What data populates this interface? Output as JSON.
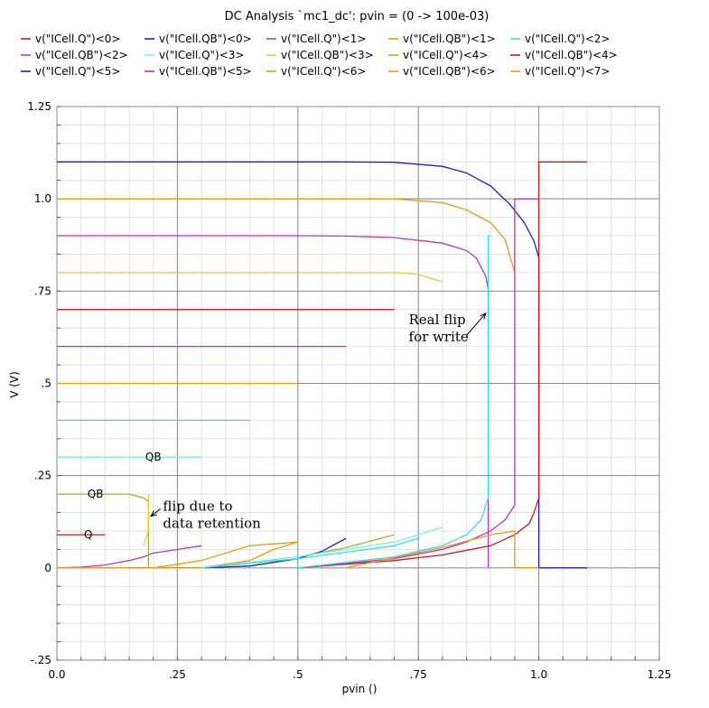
{
  "chart_data": {
    "type": "line",
    "title": "DC Analysis `mc1_dc': pvin = (0 -> 100e-03)",
    "xlabel": "pvin ()",
    "ylabel": "V (V)",
    "xlim": [
      0,
      1.25
    ],
    "ylim": [
      -0.25,
      1.25
    ],
    "x_ticks": [
      "0.0",
      ".25",
      ".5",
      ".75",
      "1.0",
      "1.25"
    ],
    "y_ticks": [
      "-.25",
      "0",
      ".25",
      ".5",
      ".75",
      "1.0",
      "1.25"
    ],
    "grid": true,
    "legend_position": "top",
    "series": [
      {
        "name": "v(\"ICell.Q\")<0>",
        "color": "#d01818",
        "points": [
          [
            0,
            0.09
          ],
          [
            0.1,
            0.09
          ]
        ]
      },
      {
        "name": "v(\"ICell.QB\")<0>",
        "color": "#1c1ccc",
        "points": [
          [
            0,
            1.1
          ],
          [
            0.6,
            1.1
          ],
          [
            0.7,
            1.099
          ],
          [
            0.8,
            1.088
          ],
          [
            0.85,
            1.07
          ],
          [
            0.9,
            1.035
          ],
          [
            0.94,
            0.985
          ],
          [
            0.97,
            0.935
          ],
          [
            0.99,
            0.885
          ],
          [
            1.0,
            0.84
          ],
          [
            1.0,
            0
          ],
          [
            1.1,
            0
          ]
        ]
      },
      {
        "name": "v(\"ICell.Q\")<1>",
        "color": "#c030c8",
        "points": [
          [
            0,
            0
          ],
          [
            0.05,
            0.002
          ],
          [
            0.1,
            0.008
          ],
          [
            0.15,
            0.02
          ],
          [
            0.18,
            0.03
          ],
          [
            0.2,
            0.04
          ],
          [
            0.25,
            0.05
          ],
          [
            0.3,
            0.06
          ]
        ]
      },
      {
        "name": "v(\"ICell.QB\")<1>",
        "color": "#e89a10",
        "points": [
          [
            0,
            1.0
          ],
          [
            0.6,
            1.0
          ],
          [
            0.7,
            1.0
          ],
          [
            0.8,
            0.99
          ],
          [
            0.85,
            0.97
          ],
          [
            0.9,
            0.935
          ],
          [
            0.93,
            0.89
          ],
          [
            0.95,
            0.8
          ]
        ]
      },
      {
        "name": "v(\"ICell.Q\")<2>",
        "color": "#30e0e0",
        "points": [
          [
            0,
            0.4
          ],
          [
            0.4,
            0.4
          ]
        ]
      },
      {
        "name": "v(\"ICell.QB\")<2>",
        "color": "#c030c8",
        "points": [
          [
            0,
            0.9
          ],
          [
            0.5,
            0.9
          ],
          [
            0.6,
            0.899
          ],
          [
            0.7,
            0.895
          ],
          [
            0.8,
            0.88
          ],
          [
            0.85,
            0.86
          ],
          [
            0.87,
            0.84
          ],
          [
            0.89,
            0.79
          ],
          [
            0.895,
            0.755
          ],
          [
            0.895,
            0
          ]
        ]
      },
      {
        "name": "v(\"ICell.Q\")<3>",
        "color": "#80eedd",
        "points": [
          [
            0,
            0.3
          ],
          [
            0.3,
            0.3
          ]
        ]
      },
      {
        "name": "v(\"ICell.QB\")<3>",
        "color": "#e8cc20",
        "points": [
          [
            0,
            0.8
          ],
          [
            0.7,
            0.8
          ],
          [
            0.75,
            0.795
          ],
          [
            0.8,
            0.775
          ]
        ]
      },
      {
        "name": "v(\"ICell.Q\")<4>",
        "color": "#90b830",
        "points": [
          [
            0,
            0.2
          ],
          [
            0.15,
            0.2
          ],
          [
            0.18,
            0.19
          ],
          [
            0.19,
            0.18
          ],
          [
            0.19,
            0
          ]
        ]
      },
      {
        "name": "v(\"ICell.QB\")<4>",
        "color": "#d01818",
        "points": [
          [
            0,
            0.7
          ],
          [
            0.7,
            0.7
          ]
        ]
      },
      {
        "name": "v(\"ICell.Q\")<5>",
        "color": "#1c1ccc",
        "points": [
          [
            0.15,
            0
          ],
          [
            0.3,
            0
          ],
          [
            0.4,
            0.005
          ],
          [
            0.5,
            0.025
          ],
          [
            0.55,
            0.045
          ],
          [
            0.6,
            0.08
          ]
        ]
      },
      {
        "name": "v(\"ICell.QB\")<5>",
        "color": "#c030c8",
        "points": [
          [
            0,
            0.6
          ],
          [
            0.6,
            0.6
          ]
        ]
      },
      {
        "name": "v(\"ICell.Q\")<6>",
        "color": "#e89a10",
        "points": [
          [
            0.2,
            0
          ],
          [
            0.3,
            0.02
          ],
          [
            0.4,
            0.06
          ],
          [
            0.5,
            0.07
          ]
        ]
      },
      {
        "name": "v(\"ICell.QB\")<6>",
        "color": "#e89a10",
        "points": [
          [
            0,
            0
          ],
          [
            0.3,
            0
          ],
          [
            0.4,
            0.02
          ],
          [
            0.45,
            0.05
          ],
          [
            0.5,
            0.07
          ]
        ]
      },
      {
        "name": "v(\"ICell.Q\")<7>",
        "color": "#e89a10",
        "points": [
          [
            0,
            0.5
          ],
          [
            0.5,
            0.5
          ]
        ]
      },
      {
        "name": "",
        "color": "#d01818",
        "points": [
          [
            0.5,
            0
          ],
          [
            0.7,
            0.02
          ],
          [
            0.8,
            0.035
          ],
          [
            0.9,
            0.06
          ],
          [
            0.95,
            0.09
          ],
          [
            0.98,
            0.12
          ],
          [
            0.99,
            0.15
          ],
          [
            1.0,
            0.19
          ],
          [
            1.0,
            1.1
          ],
          [
            1.1,
            1.1
          ]
        ]
      },
      {
        "name": "",
        "color": "#c030c8",
        "points": [
          [
            0.5,
            0
          ],
          [
            0.7,
            0.025
          ],
          [
            0.8,
            0.05
          ],
          [
            0.85,
            0.07
          ],
          [
            0.9,
            0.1
          ],
          [
            0.93,
            0.13
          ],
          [
            0.95,
            0.17
          ],
          [
            0.95,
            1.0
          ],
          [
            1.0,
            1.0
          ]
        ]
      },
      {
        "name": "",
        "color": "#30e0e0",
        "points": [
          [
            0.5,
            0
          ],
          [
            0.7,
            0.03
          ],
          [
            0.8,
            0.06
          ],
          [
            0.85,
            0.09
          ],
          [
            0.88,
            0.13
          ],
          [
            0.895,
            0.19
          ],
          [
            0.895,
            0.9
          ],
          [
            0.9,
            0.9
          ]
        ]
      },
      {
        "name": "",
        "color": "#e89a10",
        "points": [
          [
            0.95,
            0
          ],
          [
            1.0,
            0
          ]
        ]
      },
      {
        "name": "",
        "color": "#e89a10",
        "points": [
          [
            0.6,
            0
          ],
          [
            0.8,
            0.055
          ],
          [
            0.9,
            0.09
          ],
          [
            0.95,
            0.1
          ],
          [
            0.95,
            0
          ],
          [
            0.975,
            0
          ]
        ]
      },
      {
        "name": "",
        "color": "#e8cc20",
        "points": [
          [
            0.18,
            0.06
          ],
          [
            0.19,
            0.1
          ],
          [
            0.19,
            0.2
          ]
        ]
      },
      {
        "name": "",
        "color": "#90b830",
        "points": [
          [
            0.3,
            0
          ],
          [
            0.5,
            0.03
          ],
          [
            0.6,
            0.055
          ],
          [
            0.7,
            0.09
          ]
        ]
      },
      {
        "name": "",
        "color": "#80eedd",
        "points": [
          [
            0.3,
            0
          ],
          [
            0.5,
            0.03
          ],
          [
            0.7,
            0.07
          ],
          [
            0.8,
            0.11
          ]
        ]
      },
      {
        "name": "",
        "color": "#30e0e0",
        "points": [
          [
            0.3,
            0
          ],
          [
            0.5,
            0.025
          ],
          [
            0.7,
            0.06
          ],
          [
            0.75,
            0.08
          ]
        ]
      }
    ],
    "annotations": [
      {
        "text_lines": [
          "Real flip",
          "for write"
        ],
        "x": 0.73,
        "y": 0.66
      },
      {
        "text_lines": [
          "flip due to",
          "data retention"
        ],
        "x": 0.22,
        "y": 0.155
      },
      {
        "text_lines": [
          "QB"
        ],
        "x": 0.2,
        "y": 0.3
      },
      {
        "text_lines": [
          "QB"
        ],
        "x": 0.08,
        "y": 0.2
      },
      {
        "text_lines": [
          "Q"
        ],
        "x": 0.065,
        "y": 0.09
      }
    ]
  }
}
